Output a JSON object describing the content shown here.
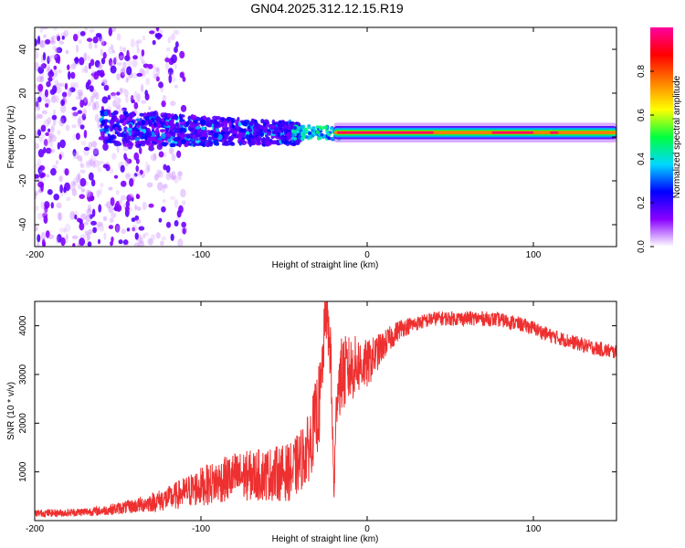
{
  "title": "GN04.2025.312.12.15.R19",
  "chart_data": [
    {
      "type": "heatmap",
      "panel": "spectrogram",
      "xlabel": "Height of straight line (km)",
      "ylabel": "Frequency (Hz)",
      "xlim": [
        -200,
        150
      ],
      "ylim": [
        -50,
        50
      ],
      "xticks": [
        -200,
        -100,
        0,
        100
      ],
      "yticks": [
        -40,
        -20,
        0,
        20,
        40
      ],
      "colorbar": {
        "label": "Normalized spectral amplitude",
        "range": [
          0,
          1
        ],
        "ticks": [
          0.0,
          0.2,
          0.4,
          0.6,
          0.8
        ],
        "tick_labels": [
          "0.0",
          "0.2",
          "0.4",
          "0.6",
          "0.8"
        ],
        "colors": [
          "#ffffff",
          "#8a00ff",
          "#0000ff",
          "#00d8ff",
          "#00ff40",
          "#ffff00",
          "#ff8000",
          "#ff0000",
          "#ff00a0"
        ]
      },
      "features": [
        {
          "description": "broad noisy spread",
          "x_range": [
            -200,
            -110
          ],
          "freq_half_width": 50,
          "amplitude": 0.1
        },
        {
          "description": "dense band",
          "x_range": [
            -160,
            -40
          ],
          "freq_center": 4,
          "freq_half_width": 8,
          "amplitude": 0.3
        },
        {
          "description": "narrow peak band",
          "x_range": [
            -20,
            150
          ],
          "freq_center": 2,
          "freq_half_width": 2,
          "amplitude": 0.95
        }
      ]
    },
    {
      "type": "line",
      "panel": "snr",
      "xlabel": "Height of straight line (km)",
      "ylabel": "SNR (10 * v/v)",
      "xlim": [
        -200,
        150
      ],
      "ylim": [
        0,
        4500
      ],
      "xticks": [
        -200,
        -100,
        0,
        100
      ],
      "yticks": [
        1000,
        2000,
        3000,
        4000
      ],
      "color": "#ee3030",
      "series": [
        {
          "name": "SNR",
          "x": [
            -200,
            -180,
            -160,
            -140,
            -120,
            -100,
            -80,
            -60,
            -45,
            -35,
            -28,
            -25,
            -22,
            -20,
            -18,
            -15,
            -10,
            -5,
            0,
            10,
            20,
            30,
            40,
            50,
            60,
            70,
            80,
            90,
            100,
            110,
            120,
            130,
            140,
            150
          ],
          "y": [
            150,
            160,
            200,
            300,
            450,
            700,
            900,
            950,
            1000,
            1500,
            2500,
            4300,
            3500,
            600,
            2800,
            3000,
            3100,
            3200,
            3200,
            3600,
            3950,
            4050,
            4150,
            4150,
            4150,
            4150,
            4120,
            4050,
            3950,
            3800,
            3700,
            3600,
            3520,
            3450
          ],
          "noise_amplitude": [
            80,
            80,
            100,
            150,
            250,
            400,
            500,
            550,
            600,
            700,
            900,
            500,
            700,
            400,
            700,
            800,
            700,
            600,
            500,
            300,
            200,
            150,
            150,
            150,
            150,
            150,
            150,
            150,
            150,
            150,
            150,
            150,
            150,
            150
          ]
        }
      ]
    }
  ]
}
